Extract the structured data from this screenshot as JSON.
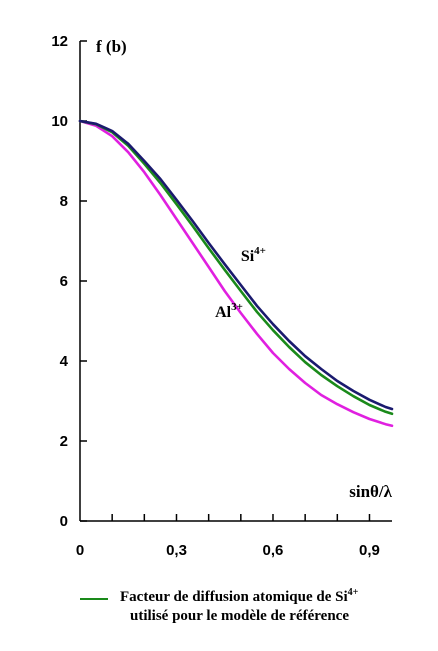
{
  "chart_data": {
    "type": "line",
    "ylabel": "f (b)",
    "xlabel": "sinθ/λ",
    "xlim": [
      0,
      0.97
    ],
    "ylim": [
      0,
      12
    ],
    "x_ticks": [
      {
        "value": 0,
        "label": "0"
      },
      {
        "value": 0.3,
        "label": "0,3"
      },
      {
        "value": 0.6,
        "label": "0,6"
      },
      {
        "value": 0.9,
        "label": "0,9"
      }
    ],
    "x_minor_ticks": [
      0.1,
      0.2,
      0.4,
      0.5,
      0.7,
      0.8
    ],
    "y_ticks": [
      {
        "value": 0,
        "label": "0"
      },
      {
        "value": 2,
        "label": "2"
      },
      {
        "value": 4,
        "label": "4"
      },
      {
        "value": 6,
        "label": "6"
      },
      {
        "value": 8,
        "label": "8"
      },
      {
        "value": 10,
        "label": "10"
      },
      {
        "value": 12,
        "label": "12"
      }
    ],
    "grid": false,
    "series": [
      {
        "name": "Si",
        "name_sup": "4+",
        "color": "#1a1a6e",
        "x": [
          0,
          0.05,
          0.1,
          0.15,
          0.2,
          0.25,
          0.3,
          0.35,
          0.4,
          0.45,
          0.5,
          0.55,
          0.6,
          0.65,
          0.7,
          0.75,
          0.8,
          0.85,
          0.9,
          0.95,
          0.97
        ],
        "values": [
          10.0,
          9.93,
          9.75,
          9.43,
          9.0,
          8.55,
          8.03,
          7.5,
          6.95,
          6.42,
          5.9,
          5.38,
          4.92,
          4.5,
          4.12,
          3.8,
          3.5,
          3.25,
          3.03,
          2.85,
          2.8
        ]
      },
      {
        "name": "",
        "color": "#1a8a1a",
        "x": [
          0,
          0.05,
          0.1,
          0.15,
          0.2,
          0.25,
          0.3,
          0.35,
          0.4,
          0.45,
          0.5,
          0.55,
          0.6,
          0.65,
          0.7,
          0.75,
          0.8,
          0.85,
          0.9,
          0.95,
          0.97
        ],
        "values": [
          10.0,
          9.92,
          9.72,
          9.38,
          8.93,
          8.45,
          7.92,
          7.38,
          6.82,
          6.28,
          5.75,
          5.23,
          4.77,
          4.35,
          3.97,
          3.65,
          3.37,
          3.12,
          2.9,
          2.73,
          2.68
        ]
      },
      {
        "name": "Al",
        "name_sup": "3+",
        "color": "#e020e0",
        "x": [
          0,
          0.05,
          0.1,
          0.15,
          0.2,
          0.25,
          0.3,
          0.35,
          0.4,
          0.45,
          0.5,
          0.55,
          0.6,
          0.65,
          0.7,
          0.75,
          0.8,
          0.85,
          0.9,
          0.95,
          0.97
        ],
        "values": [
          10.0,
          9.88,
          9.62,
          9.22,
          8.72,
          8.15,
          7.55,
          6.95,
          6.35,
          5.75,
          5.2,
          4.68,
          4.2,
          3.8,
          3.45,
          3.15,
          2.92,
          2.72,
          2.55,
          2.42,
          2.38
        ]
      }
    ],
    "annotations": [
      {
        "series_index": 0,
        "text": "Si",
        "sup": "4+",
        "x": 0.5,
        "y": 6.5
      },
      {
        "series_index": 2,
        "text": "Al",
        "sup": "3+",
        "x": 0.42,
        "y": 5.1
      }
    ]
  },
  "legend": {
    "line1_text": "Facteur de diffusion atomique de Si",
    "line1_sup": "4+",
    "line2_text": "utilisé pour le modèle de référence",
    "swatch_color": "#1a8a1a"
  }
}
